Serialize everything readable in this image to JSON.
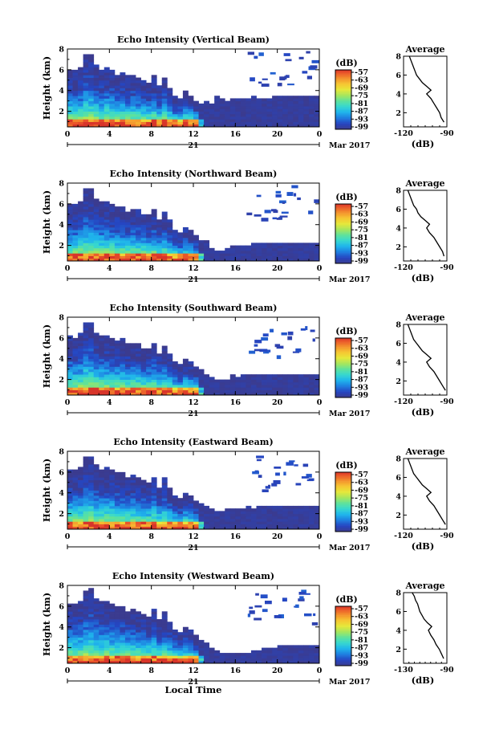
{
  "figure": {
    "x_axis_label": "Local Time",
    "date_label": "21",
    "month_label": "Mar 2017"
  },
  "chart_data": [
    {
      "type": "heatmap",
      "title": "Echo Intensity (Vertical Beam)",
      "ylabel": "Height (km)",
      "xlabel": "Local Time",
      "x_ticks": [
        "0",
        "4",
        "8",
        "12",
        "16",
        "20",
        "0"
      ],
      "y_ticks": [
        "2",
        "4",
        "6",
        "8"
      ],
      "xlim": [
        0,
        24
      ],
      "ylim": [
        0.5,
        8
      ],
      "colorbar": {
        "unit": "(dB)",
        "ticks": [
          "-57",
          "-63",
          "-69",
          "-75",
          "-81",
          "-87",
          "-93",
          "-99"
        ]
      },
      "profile": {
        "title": "Average",
        "xlabel": "(dB)",
        "x_ticks": [
          "-120",
          "-90"
        ],
        "xlim": [
          -120,
          -90
        ],
        "ylim": [
          0.5,
          8
        ],
        "points": [
          [
            -92,
            1.0
          ],
          [
            -94,
            1.5
          ],
          [
            -95,
            2.0
          ],
          [
            -97,
            2.5
          ],
          [
            -99,
            3.0
          ],
          [
            -101,
            3.5
          ],
          [
            -104,
            4.0
          ],
          [
            -101,
            4.4
          ],
          [
            -104,
            4.8
          ],
          [
            -107,
            5.2
          ],
          [
            -109,
            5.6
          ],
          [
            -111,
            6.0
          ],
          [
            -112,
            6.4
          ],
          [
            -113,
            6.8
          ],
          [
            -114,
            7.2
          ],
          [
            -115,
            7.6
          ],
          [
            -116,
            8.0
          ]
        ]
      },
      "echo_top_km": [
        6.0,
        6.1,
        6.3,
        7.5,
        7.5,
        6.4,
        6.1,
        6.3,
        6.1,
        5.6,
        5.8,
        5.4,
        5.6,
        5.3,
        5.0,
        4.8,
        5.5,
        4.4,
        5.3,
        4.3,
        3.5,
        3.3,
        3.9,
        3.6,
        3.1,
        2.8,
        2.9,
        2.8,
        3.4,
        3.3,
        3.1,
        3.3,
        3.2,
        3.2,
        3.3,
        3.4,
        3.3,
        3.2,
        3.3,
        3.4,
        3.4,
        3.4,
        3.4,
        3.4,
        3.4,
        3.4,
        3.4,
        3.4
      ]
    },
    {
      "type": "heatmap",
      "title": "Echo Intensity (Northward Beam)",
      "ylabel": "Height (km)",
      "xlabel": "Local Time",
      "x_ticks": [
        "0",
        "4",
        "8",
        "12",
        "16",
        "20",
        "0"
      ],
      "y_ticks": [
        "2",
        "4",
        "6",
        "8"
      ],
      "xlim": [
        0,
        24
      ],
      "ylim": [
        0.5,
        8
      ],
      "colorbar": {
        "unit": "(dB)",
        "ticks": [
          "-57",
          "-63",
          "-69",
          "-75",
          "-81",
          "-87",
          "-93",
          "-99"
        ]
      },
      "profile": {
        "title": "Average",
        "xlabel": "(dB)",
        "x_ticks": [
          "-120",
          "-90"
        ],
        "xlim": [
          -120,
          -90
        ],
        "ylim": [
          0.5,
          8
        ],
        "points": [
          [
            -92,
            1.0
          ],
          [
            -93,
            1.5
          ],
          [
            -95,
            2.0
          ],
          [
            -97,
            2.5
          ],
          [
            -99,
            3.0
          ],
          [
            -102,
            3.5
          ],
          [
            -104,
            4.0
          ],
          [
            -102,
            4.4
          ],
          [
            -105,
            4.8
          ],
          [
            -108,
            5.2
          ],
          [
            -110,
            5.6
          ],
          [
            -111,
            6.0
          ],
          [
            -113,
            6.4
          ],
          [
            -114,
            6.8
          ],
          [
            -115,
            7.2
          ],
          [
            -116,
            7.6
          ],
          [
            -117,
            8.0
          ]
        ]
      },
      "echo_top_km": [
        6.1,
        6.0,
        6.3,
        7.5,
        7.5,
        6.6,
        6.2,
        6.2,
        6.0,
        5.7,
        5.8,
        5.3,
        5.5,
        5.4,
        5.0,
        4.9,
        5.5,
        4.5,
        5.2,
        4.4,
        3.6,
        3.2,
        3.8,
        3.5,
        3.0,
        2.6,
        2.4,
        1.8,
        1.5,
        1.5,
        1.7,
        2.0,
        1.9,
        2.0,
        2.1,
        2.2,
        2.2,
        2.2,
        2.2,
        2.2,
        2.2,
        2.2,
        2.2,
        2.2,
        2.2,
        2.2,
        2.2,
        2.2
      ]
    },
    {
      "type": "heatmap",
      "title": "Echo Intensity (Southward Beam)",
      "ylabel": "Height (km)",
      "xlabel": "Local Time",
      "x_ticks": [
        "0",
        "4",
        "8",
        "12",
        "16",
        "20",
        "0"
      ],
      "y_ticks": [
        "2",
        "4",
        "6",
        "8"
      ],
      "xlim": [
        0,
        24
      ],
      "ylim": [
        0.5,
        8
      ],
      "colorbar": {
        "unit": "(dB)",
        "ticks": [
          "-57",
          "-63",
          "-69",
          "-75",
          "-81",
          "-87",
          "-93",
          "-99"
        ]
      },
      "profile": {
        "title": "Average",
        "xlabel": "(dB)",
        "x_ticks": [
          "-120",
          "-90"
        ],
        "xlim": [
          -120,
          -90
        ],
        "ylim": [
          0.5,
          8
        ],
        "points": [
          [
            -91,
            1.0
          ],
          [
            -93,
            1.5
          ],
          [
            -95,
            2.0
          ],
          [
            -97,
            2.5
          ],
          [
            -99,
            3.0
          ],
          [
            -102,
            3.5
          ],
          [
            -104,
            4.0
          ],
          [
            -101,
            4.4
          ],
          [
            -104,
            4.8
          ],
          [
            -107,
            5.2
          ],
          [
            -109,
            5.6
          ],
          [
            -111,
            6.0
          ],
          [
            -113,
            6.4
          ],
          [
            -114,
            6.8
          ],
          [
            -115,
            7.2
          ],
          [
            -116,
            7.6
          ],
          [
            -117,
            8.0
          ]
        ]
      },
      "echo_top_km": [
        6.2,
        6.1,
        6.4,
        7.5,
        7.6,
        6.6,
        6.2,
        6.3,
        6.1,
        5.8,
        5.9,
        5.4,
        5.6,
        5.5,
        5.1,
        5.0,
        5.6,
        4.6,
        5.3,
        4.5,
        3.8,
        3.4,
        3.9,
        3.7,
        3.2,
        2.9,
        2.6,
        2.2,
        2.0,
        1.9,
        2.1,
        2.4,
        2.3,
        2.4,
        2.6,
        2.5,
        2.6,
        2.6,
        2.6,
        2.6,
        2.6,
        2.6,
        2.6,
        2.6,
        2.6,
        2.6,
        2.6,
        2.6
      ]
    },
    {
      "type": "heatmap",
      "title": "Echo Intensity (Eastward Beam)",
      "ylabel": "Height (km)",
      "xlabel": "Local Time",
      "x_ticks": [
        "0",
        "4",
        "8",
        "12",
        "16",
        "20",
        "0"
      ],
      "y_ticks": [
        "2",
        "4",
        "6",
        "8"
      ],
      "xlim": [
        0,
        24
      ],
      "ylim": [
        0.5,
        8
      ],
      "colorbar": {
        "unit": "(dB)",
        "ticks": [
          "-57",
          "-63",
          "-69",
          "-75",
          "-81",
          "-87",
          "-93",
          "-99"
        ]
      },
      "profile": {
        "title": "Average",
        "xlabel": "(dB)",
        "x_ticks": [
          "-120",
          "-90"
        ],
        "xlim": [
          -120,
          -90
        ],
        "ylim": [
          0.5,
          8
        ],
        "points": [
          [
            -91,
            1.0
          ],
          [
            -93,
            1.5
          ],
          [
            -95,
            2.0
          ],
          [
            -97,
            2.5
          ],
          [
            -99,
            3.0
          ],
          [
            -102,
            3.5
          ],
          [
            -104,
            4.0
          ],
          [
            -101,
            4.4
          ],
          [
            -104,
            4.8
          ],
          [
            -107,
            5.2
          ],
          [
            -109,
            5.6
          ],
          [
            -111,
            6.0
          ],
          [
            -113,
            6.4
          ],
          [
            -114,
            6.8
          ],
          [
            -115,
            7.2
          ],
          [
            -116,
            7.6
          ],
          [
            -117,
            8.0
          ]
        ]
      },
      "echo_top_km": [
        6.2,
        6.2,
        6.5,
        7.6,
        7.6,
        6.7,
        6.3,
        6.4,
        6.2,
        5.9,
        6.0,
        5.5,
        5.7,
        5.5,
        5.2,
        5.0,
        5.6,
        4.6,
        5.4,
        4.6,
        3.8,
        3.4,
        4.0,
        3.7,
        3.2,
        2.9,
        2.7,
        2.4,
        2.2,
        2.2,
        2.4,
        2.6,
        2.6,
        2.6,
        2.7,
        2.6,
        2.7,
        2.7,
        2.7,
        2.7,
        2.7,
        2.7,
        2.7,
        2.7,
        2.7,
        2.7,
        2.7,
        2.7
      ]
    },
    {
      "type": "heatmap",
      "title": "Echo Intensity (Westward Beam)",
      "ylabel": "Height (km)",
      "xlabel": "Local Time",
      "x_ticks": [
        "0",
        "4",
        "8",
        "12",
        "16",
        "20",
        "0"
      ],
      "y_ticks": [
        "2",
        "4",
        "6",
        "8"
      ],
      "xlim": [
        0,
        24
      ],
      "ylim": [
        0.5,
        8
      ],
      "colorbar": {
        "unit": "(dB)",
        "ticks": [
          "-57",
          "-63",
          "-69",
          "-75",
          "-81",
          "-87",
          "-93",
          "-99"
        ]
      },
      "profile": {
        "title": "Average",
        "xlabel": "(dB)",
        "x_ticks": [
          "-130",
          "-90"
        ],
        "xlim": [
          -130,
          -90
        ],
        "ylim": [
          0.5,
          8
        ],
        "points": [
          [
            -93,
            1.0
          ],
          [
            -95,
            1.5
          ],
          [
            -97,
            2.0
          ],
          [
            -100,
            2.5
          ],
          [
            -102,
            3.0
          ],
          [
            -105,
            3.5
          ],
          [
            -107,
            4.0
          ],
          [
            -104,
            4.4
          ],
          [
            -108,
            4.8
          ],
          [
            -111,
            5.2
          ],
          [
            -113,
            5.6
          ],
          [
            -115,
            6.0
          ],
          [
            -116,
            6.4
          ],
          [
            -117,
            6.8
          ],
          [
            -119,
            7.2
          ],
          [
            -120,
            7.6
          ],
          [
            -122,
            8.0
          ]
        ]
      },
      "echo_top_km": [
        6.3,
        6.3,
        6.6,
        7.6,
        7.7,
        6.8,
        6.4,
        6.5,
        6.3,
        6.0,
        6.1,
        5.6,
        5.8,
        5.6,
        5.3,
        5.1,
        5.7,
        4.7,
        5.5,
        4.6,
        3.8,
        3.4,
        4.0,
        3.7,
        3.2,
        2.8,
        2.4,
        2.0,
        1.8,
        1.6,
        1.6,
        1.6,
        1.6,
        1.6,
        1.6,
        1.7,
        1.8,
        1.9,
        2.0,
        2.1,
        2.2,
        2.3,
        2.3,
        2.3,
        2.3,
        2.3,
        2.3,
        2.3
      ]
    }
  ]
}
